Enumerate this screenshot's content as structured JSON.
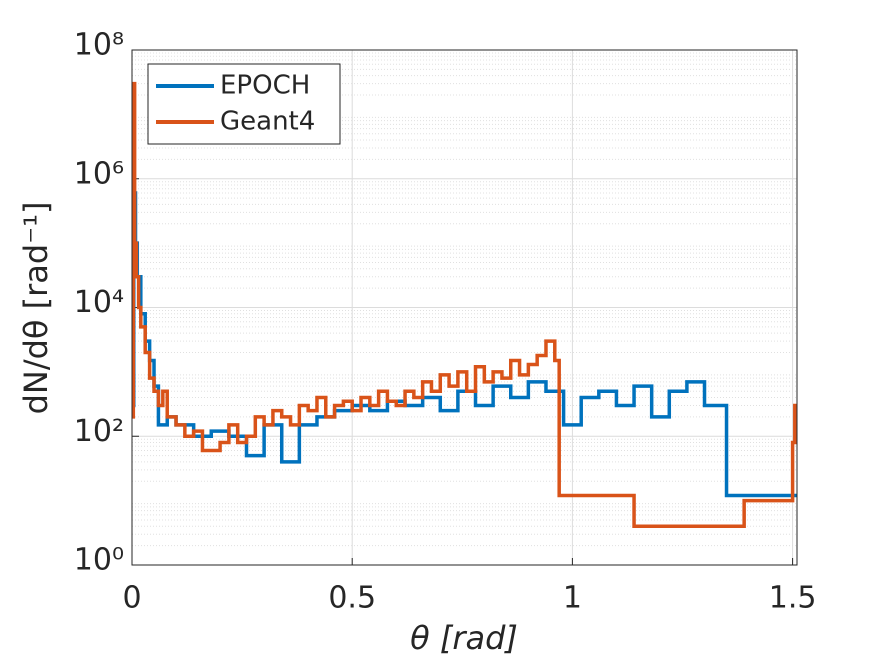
{
  "chart_data": {
    "type": "step",
    "xlabel": "θ [rad]",
    "ylabel": "dN/dθ [rad⁻¹]",
    "xlim": [
      0,
      1.51
    ],
    "xticks": [
      0,
      0.5,
      1,
      1.5
    ],
    "ylim": [
      1,
      100000000
    ],
    "log_y": true,
    "yticks": [
      {
        "value": 1,
        "label": "10⁰"
      },
      {
        "value": 100,
        "label": "10²"
      },
      {
        "value": 10000,
        "label": "10⁴"
      },
      {
        "value": 1000000,
        "label": "10⁶"
      },
      {
        "value": 100000000,
        "label": "10⁸"
      }
    ],
    "grid": true,
    "minor_grid": true,
    "legend": "upper-left",
    "series": [
      {
        "name": "EPOCH",
        "color": "#0072bd",
        "x": [
          0,
          0.004,
          0.008,
          0.012,
          0.02,
          0.03,
          0.04,
          0.05,
          0.06,
          0.08,
          0.1,
          0.14,
          0.18,
          0.22,
          0.26,
          0.3,
          0.34,
          0.38,
          0.42,
          0.46,
          0.5,
          0.54,
          0.58,
          0.62,
          0.66,
          0.7,
          0.74,
          0.78,
          0.82,
          0.86,
          0.9,
          0.94,
          0.98,
          1.02,
          1.06,
          1.1,
          1.14,
          1.18,
          1.22,
          1.26,
          1.3,
          1.35,
          1.51
        ],
        "values": [
          300,
          600000,
          100000,
          30000,
          8000,
          3000,
          1500,
          600,
          150,
          200,
          150,
          100,
          120,
          100,
          50,
          150,
          40,
          150,
          200,
          250,
          300,
          250,
          350,
          300,
          400,
          250,
          500,
          300,
          600,
          400,
          700,
          500,
          150,
          400,
          500,
          300,
          600,
          200,
          500,
          700,
          300,
          12,
          12
        ]
      },
      {
        "name": "Geant4",
        "color": "#d95319",
        "x": [
          0,
          0.003,
          0.006,
          0.01,
          0.015,
          0.02,
          0.03,
          0.04,
          0.05,
          0.06,
          0.07,
          0.08,
          0.1,
          0.12,
          0.14,
          0.16,
          0.18,
          0.2,
          0.22,
          0.24,
          0.26,
          0.28,
          0.3,
          0.32,
          0.34,
          0.36,
          0.38,
          0.4,
          0.42,
          0.44,
          0.46,
          0.48,
          0.5,
          0.52,
          0.54,
          0.56,
          0.58,
          0.6,
          0.62,
          0.64,
          0.66,
          0.68,
          0.7,
          0.72,
          0.74,
          0.76,
          0.78,
          0.8,
          0.82,
          0.84,
          0.86,
          0.88,
          0.9,
          0.92,
          0.94,
          0.96,
          0.97,
          1.14,
          1.39,
          1.5,
          1.505,
          1.51
        ],
        "values": [
          200,
          30000000,
          100000,
          30000,
          10000,
          5000,
          2000,
          800,
          500,
          300,
          500,
          200,
          150,
          100,
          120,
          60,
          60,
          80,
          150,
          80,
          100,
          200,
          150,
          250,
          200,
          150,
          300,
          250,
          400,
          200,
          300,
          350,
          250,
          400,
          300,
          500,
          350,
          300,
          500,
          400,
          700,
          500,
          900,
          600,
          1000,
          500,
          1200,
          700,
          1000,
          800,
          1500,
          900,
          1300,
          1800,
          3000,
          1500,
          12,
          4,
          10,
          80,
          300,
          300
        ]
      }
    ]
  }
}
